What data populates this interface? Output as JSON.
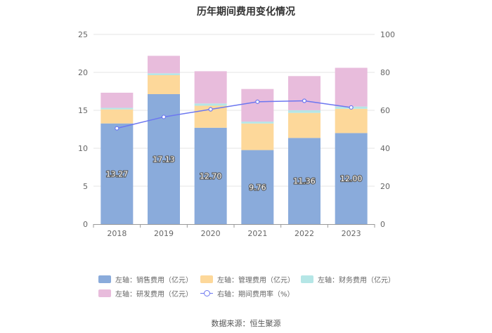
{
  "chart_data": {
    "type": "bar",
    "title": "历年期间费用变化情况",
    "categories": [
      "2018",
      "2019",
      "2020",
      "2021",
      "2022",
      "2023"
    ],
    "left_axis": {
      "ylim": [
        0,
        25
      ],
      "ticks": [
        "0",
        "5",
        "10",
        "15",
        "20",
        "25"
      ]
    },
    "right_axis": {
      "ylim": [
        0,
        100
      ],
      "ticks": [
        "0",
        "20",
        "40",
        "60",
        "80",
        "100"
      ]
    },
    "series": [
      {
        "name": "左轴：销售费用（亿元）",
        "axis": "left",
        "type": "bar",
        "color": "#8aabdb",
        "values": [
          13.27,
          17.13,
          12.7,
          9.76,
          11.36,
          12.0
        ],
        "labels": [
          "13.27",
          "17.13",
          "12.70",
          "9.76",
          "11.36",
          "12.00"
        ]
      },
      {
        "name": "左轴：管理费用（亿元）",
        "axis": "left",
        "type": "bar",
        "color": "#fdd89a",
        "values": [
          1.85,
          2.5,
          2.9,
          3.5,
          3.3,
          3.2
        ]
      },
      {
        "name": "左轴：财务费用（亿元）",
        "axis": "left",
        "type": "bar",
        "color": "#b5e6e6",
        "values": [
          0.2,
          0.25,
          0.3,
          0.25,
          0.35,
          0.3
        ]
      },
      {
        "name": "左轴：研发费用（亿元）",
        "axis": "left",
        "type": "bar",
        "color": "#e8bcdc",
        "values": [
          2.0,
          2.3,
          4.25,
          4.3,
          4.5,
          5.1
        ]
      },
      {
        "name": "右轴：期间费用率（%）",
        "axis": "right",
        "type": "line",
        "color": "#6c77f0",
        "values": [
          50.5,
          56.5,
          60.5,
          64.5,
          65.0,
          61.5
        ]
      }
    ],
    "legend_position": "bottom",
    "grid": true
  },
  "source": "数据来源：恒生聚源"
}
